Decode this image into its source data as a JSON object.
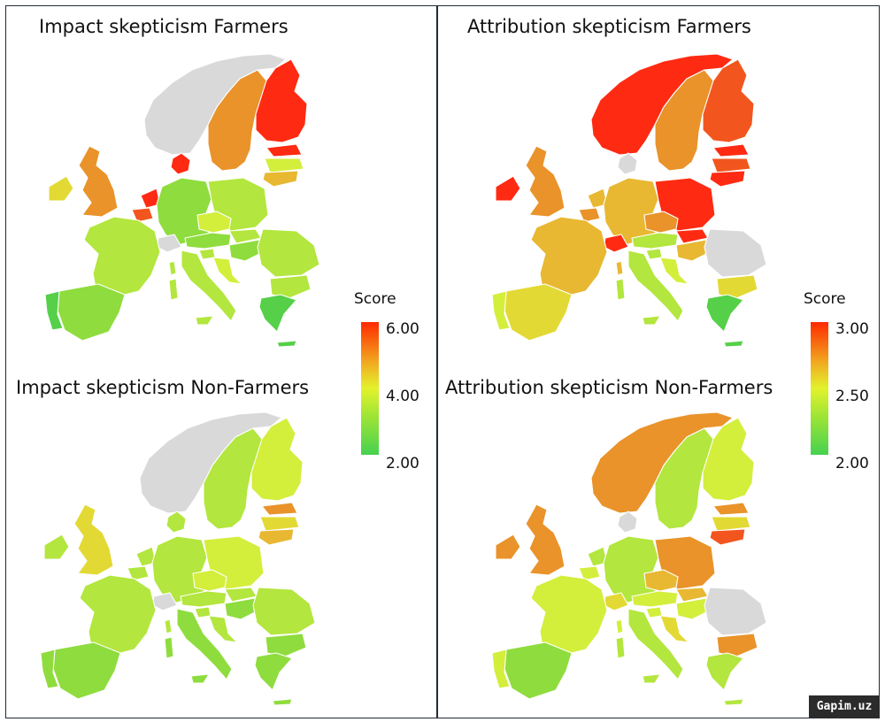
{
  "titles": {
    "impact_farmers": "Impact skepticism Farmers",
    "impact_nonfarmers": "Impact skepticism Non-Farmers",
    "attribution_farmers": "Attribution skepticism Farmers",
    "attribution_nonfarmers": "Attribution skepticism Non-Farmers"
  },
  "legends": {
    "impact": {
      "title": "Score",
      "ticks": [
        "6.00",
        "4.00",
        "2.00"
      ]
    },
    "attribution": {
      "title": "Score",
      "ticks": [
        "3.00",
        "2.50",
        "2.00"
      ]
    }
  },
  "watermark": "Gapim.uz",
  "colors": {
    "red": "#ff2a12",
    "red_orange": "#f2561e",
    "orange": "#e9932a",
    "orange_yellow": "#e8b832",
    "yellow": "#e3d934",
    "yellow_green": "#d4ee3c",
    "lime": "#b3e63e",
    "green": "#8fdc3e",
    "bright_green": "#55d048",
    "no_data": "#d9d9d9"
  },
  "chart_data": [
    {
      "type": "choropleth",
      "title": "Impact skepticism Farmers",
      "legend": "Score",
      "scale": [
        2.0,
        6.0
      ],
      "regions": [
        {
          "name": "norway",
          "color": "#d9d9d9"
        },
        {
          "name": "sweden",
          "color": "#e9932a"
        },
        {
          "name": "finland",
          "color": "#ff2a12"
        },
        {
          "name": "estonia",
          "color": "#ff2a12"
        },
        {
          "name": "latvia",
          "color": "#d4ee3c"
        },
        {
          "name": "lithuania",
          "color": "#e8b832"
        },
        {
          "name": "denmark",
          "color": "#ff2a12"
        },
        {
          "name": "ireland",
          "color": "#e3d934"
        },
        {
          "name": "uk",
          "color": "#e9932a"
        },
        {
          "name": "netherlands",
          "color": "#ff2a12"
        },
        {
          "name": "belgium",
          "color": "#f2561e"
        },
        {
          "name": "germany",
          "color": "#8fdc3e"
        },
        {
          "name": "poland",
          "color": "#b3e63e"
        },
        {
          "name": "czechia",
          "color": "#d4ee3c"
        },
        {
          "name": "slovakia",
          "color": "#b3e63e"
        },
        {
          "name": "austria",
          "color": "#8fdc3e"
        },
        {
          "name": "switzerland",
          "color": "#d9d9d9"
        },
        {
          "name": "hungary",
          "color": "#8fdc3e"
        },
        {
          "name": "romania",
          "color": "#b3e63e"
        },
        {
          "name": "bulgaria",
          "color": "#b3e63e"
        },
        {
          "name": "france",
          "color": "#b3e63e"
        },
        {
          "name": "italy",
          "color": "#b3e63e"
        },
        {
          "name": "slovenia",
          "color": "#b3e63e"
        },
        {
          "name": "croatia",
          "color": "#d4ee3c"
        },
        {
          "name": "greece",
          "color": "#55d048"
        },
        {
          "name": "spain",
          "color": "#8fdc3e"
        },
        {
          "name": "portugal",
          "color": "#55d048"
        }
      ]
    },
    {
      "type": "choropleth",
      "title": "Attribution skepticism Farmers",
      "legend": "Score",
      "scale": [
        2.0,
        3.0
      ],
      "regions": [
        {
          "name": "norway",
          "color": "#ff2a12"
        },
        {
          "name": "sweden",
          "color": "#e9932a"
        },
        {
          "name": "finland",
          "color": "#f2561e"
        },
        {
          "name": "estonia",
          "color": "#ff2a12"
        },
        {
          "name": "latvia",
          "color": "#f2561e"
        },
        {
          "name": "lithuania",
          "color": "#ff2a12"
        },
        {
          "name": "denmark",
          "color": "#d9d9d9"
        },
        {
          "name": "ireland",
          "color": "#ff2a12"
        },
        {
          "name": "uk",
          "color": "#e9932a"
        },
        {
          "name": "netherlands",
          "color": "#e8b832"
        },
        {
          "name": "belgium",
          "color": "#e9932a"
        },
        {
          "name": "germany",
          "color": "#e8b832"
        },
        {
          "name": "poland",
          "color": "#ff2a12"
        },
        {
          "name": "czechia",
          "color": "#e9932a"
        },
        {
          "name": "slovakia",
          "color": "#ff2a12"
        },
        {
          "name": "austria",
          "color": "#b3e63e"
        },
        {
          "name": "switzerland",
          "color": "#ff2a12"
        },
        {
          "name": "hungary",
          "color": "#e8b832"
        },
        {
          "name": "romania",
          "color": "#d9d9d9"
        },
        {
          "name": "bulgaria",
          "color": "#e3d934"
        },
        {
          "name": "france",
          "color": "#e8b832"
        },
        {
          "name": "italy",
          "color": "#b3e63e"
        },
        {
          "name": "slovenia",
          "color": "#b3e63e"
        },
        {
          "name": "croatia",
          "color": "#d4ee3c"
        },
        {
          "name": "greece",
          "color": "#55d048"
        },
        {
          "name": "spain",
          "color": "#e3d934"
        },
        {
          "name": "portugal",
          "color": "#d4ee3c"
        }
      ]
    },
    {
      "type": "choropleth",
      "title": "Impact skepticism Non-Farmers",
      "legend": "Score",
      "scale": [
        2.0,
        6.0
      ],
      "regions": [
        {
          "name": "norway",
          "color": "#d9d9d9"
        },
        {
          "name": "sweden",
          "color": "#b3e63e"
        },
        {
          "name": "finland",
          "color": "#d4ee3c"
        },
        {
          "name": "estonia",
          "color": "#e9932a"
        },
        {
          "name": "latvia",
          "color": "#e3d934"
        },
        {
          "name": "lithuania",
          "color": "#e8b832"
        },
        {
          "name": "denmark",
          "color": "#b3e63e"
        },
        {
          "name": "ireland",
          "color": "#b3e63e"
        },
        {
          "name": "uk",
          "color": "#e3d934"
        },
        {
          "name": "netherlands",
          "color": "#b3e63e"
        },
        {
          "name": "belgium",
          "color": "#b3e63e"
        },
        {
          "name": "germany",
          "color": "#b3e63e"
        },
        {
          "name": "poland",
          "color": "#d4ee3c"
        },
        {
          "name": "czechia",
          "color": "#d4ee3c"
        },
        {
          "name": "slovakia",
          "color": "#b3e63e"
        },
        {
          "name": "austria",
          "color": "#b3e63e"
        },
        {
          "name": "switzerland",
          "color": "#d9d9d9"
        },
        {
          "name": "hungary",
          "color": "#8fdc3e"
        },
        {
          "name": "romania",
          "color": "#b3e63e"
        },
        {
          "name": "bulgaria",
          "color": "#8fdc3e"
        },
        {
          "name": "france",
          "color": "#b3e63e"
        },
        {
          "name": "italy",
          "color": "#8fdc3e"
        },
        {
          "name": "slovenia",
          "color": "#b3e63e"
        },
        {
          "name": "croatia",
          "color": "#b3e63e"
        },
        {
          "name": "greece",
          "color": "#8fdc3e"
        },
        {
          "name": "spain",
          "color": "#8fdc3e"
        },
        {
          "name": "portugal",
          "color": "#8fdc3e"
        }
      ]
    },
    {
      "type": "choropleth",
      "title": "Attribution skepticism Non-Farmers",
      "legend": "Score",
      "scale": [
        2.0,
        3.0
      ],
      "regions": [
        {
          "name": "norway",
          "color": "#e9932a"
        },
        {
          "name": "sweden",
          "color": "#b3e63e"
        },
        {
          "name": "finland",
          "color": "#d4ee3c"
        },
        {
          "name": "estonia",
          "color": "#e9932a"
        },
        {
          "name": "latvia",
          "color": "#e3d934"
        },
        {
          "name": "lithuania",
          "color": "#f2561e"
        },
        {
          "name": "denmark",
          "color": "#d9d9d9"
        },
        {
          "name": "ireland",
          "color": "#e9932a"
        },
        {
          "name": "uk",
          "color": "#e9932a"
        },
        {
          "name": "netherlands",
          "color": "#b3e63e"
        },
        {
          "name": "belgium",
          "color": "#d4ee3c"
        },
        {
          "name": "germany",
          "color": "#b3e63e"
        },
        {
          "name": "poland",
          "color": "#e9932a"
        },
        {
          "name": "czechia",
          "color": "#e8b832"
        },
        {
          "name": "slovakia",
          "color": "#e8b832"
        },
        {
          "name": "austria",
          "color": "#d4ee3c"
        },
        {
          "name": "switzerland",
          "color": "#e3d934"
        },
        {
          "name": "hungary",
          "color": "#d4ee3c"
        },
        {
          "name": "romania",
          "color": "#d9d9d9"
        },
        {
          "name": "bulgaria",
          "color": "#e9932a"
        },
        {
          "name": "france",
          "color": "#d4ee3c"
        },
        {
          "name": "italy",
          "color": "#b3e63e"
        },
        {
          "name": "slovenia",
          "color": "#d4ee3c"
        },
        {
          "name": "croatia",
          "color": "#e3d934"
        },
        {
          "name": "greece",
          "color": "#b3e63e"
        },
        {
          "name": "spain",
          "color": "#8fdc3e"
        },
        {
          "name": "portugal",
          "color": "#d4ee3c"
        }
      ]
    }
  ]
}
